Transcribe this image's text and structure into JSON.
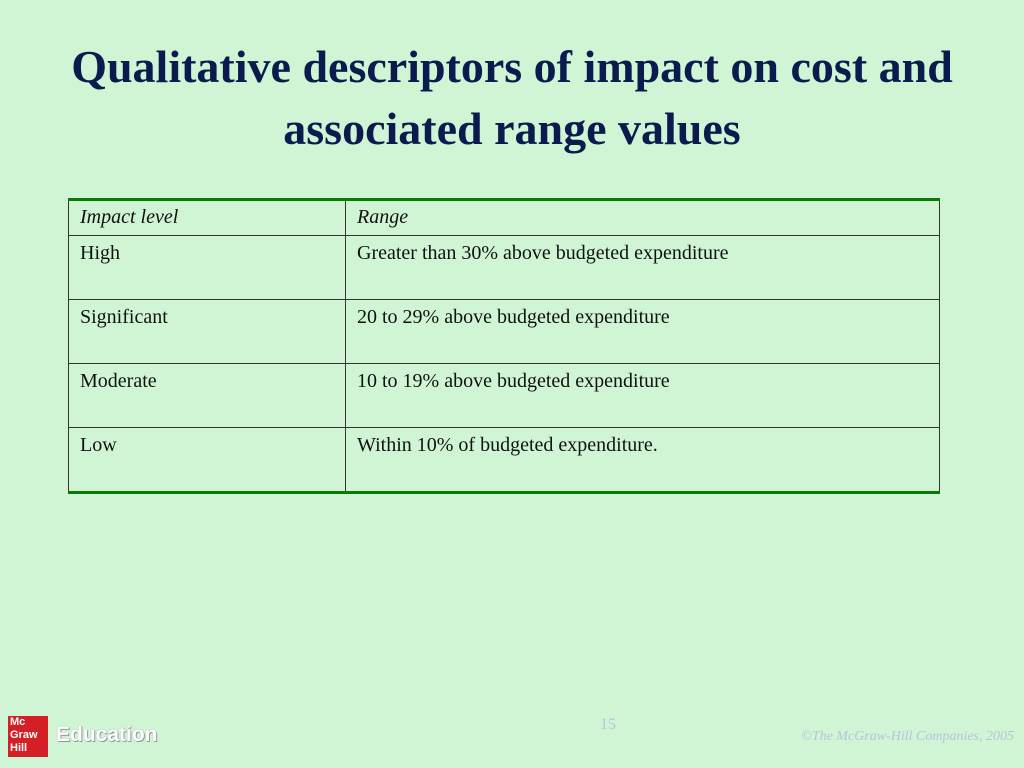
{
  "title": "Qualitative descriptors of impact on cost and associated range values",
  "table": {
    "header": [
      "Impact level",
      "Range"
    ],
    "rows": [
      [
        "High",
        "Greater than 30% above budgeted expenditure"
      ],
      [
        "Significant",
        "20 to 29% above budgeted expenditure"
      ],
      [
        "Moderate",
        "10 to 19% above budgeted expenditure"
      ],
      [
        "Low",
        "Within 10% of budgeted expenditure."
      ]
    ]
  },
  "footer": {
    "logo": [
      "Mc",
      "Graw",
      "Hill"
    ],
    "brand": "Education",
    "page_number": "15",
    "copyright": "©The McGraw-Hill Companies, 2005"
  }
}
